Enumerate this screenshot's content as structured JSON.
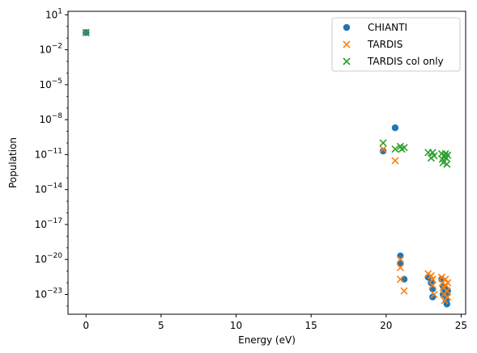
{
  "chart_data": {
    "type": "scatter",
    "title": "",
    "xlabel": "Energy (eV)",
    "ylabel": "Population",
    "xlim": [
      -1.2,
      25.3
    ],
    "ylim_log10": [
      -24.7,
      1.3
    ],
    "yscale": "log",
    "x_ticks": [
      0,
      5,
      10,
      15,
      20,
      25
    ],
    "x_tick_labels": [
      "0",
      "5",
      "10",
      "15",
      "20",
      "25"
    ],
    "y_ticks_log10": [
      1,
      -2,
      -5,
      -8,
      -11,
      -14,
      -17,
      -20,
      -23
    ],
    "grid": false,
    "legend_position": "upper right",
    "series": [
      {
        "name": "CHIANTI",
        "marker": "circle",
        "color": "#1f77b4",
        "points": [
          {
            "x": 0.0,
            "y": 0.3
          },
          {
            "x": 20.6,
            "y": 2e-09
          },
          {
            "x": 19.8,
            "y": 2e-11
          },
          {
            "x": 20.95,
            "y": 2e-20
          },
          {
            "x": 20.95,
            "y": 5e-21
          },
          {
            "x": 21.2,
            "y": 2e-22
          },
          {
            "x": 22.8,
            "y": 3e-22
          },
          {
            "x": 23.0,
            "y": 1e-22
          },
          {
            "x": 23.1,
            "y": 3e-23
          },
          {
            "x": 23.1,
            "y": 6e-24
          },
          {
            "x": 23.7,
            "y": 2e-22
          },
          {
            "x": 23.8,
            "y": 5e-23
          },
          {
            "x": 23.8,
            "y": 1e-23
          },
          {
            "x": 23.9,
            "y": 3e-23
          },
          {
            "x": 24.0,
            "y": 1e-23
          },
          {
            "x": 24.0,
            "y": 3e-24
          },
          {
            "x": 24.05,
            "y": 1.5e-24
          },
          {
            "x": 24.1,
            "y": 2e-23
          }
        ]
      },
      {
        "name": "TARDIS",
        "marker": "x",
        "color": "#ff7f0e",
        "points": [
          {
            "x": 0.0,
            "y": 0.3
          },
          {
            "x": 19.8,
            "y": 3e-11
          },
          {
            "x": 20.6,
            "y": 3e-12
          },
          {
            "x": 20.95,
            "y": 1e-20
          },
          {
            "x": 20.95,
            "y": 2e-21
          },
          {
            "x": 20.95,
            "y": 2e-22
          },
          {
            "x": 21.2,
            "y": 2e-23
          },
          {
            "x": 22.8,
            "y": 6e-22
          },
          {
            "x": 23.0,
            "y": 4e-22
          },
          {
            "x": 23.1,
            "y": 2e-22
          },
          {
            "x": 23.1,
            "y": 6e-23
          },
          {
            "x": 23.2,
            "y": 1e-23
          },
          {
            "x": 23.7,
            "y": 3e-22
          },
          {
            "x": 23.75,
            "y": 1e-22
          },
          {
            "x": 23.8,
            "y": 4e-23
          },
          {
            "x": 23.85,
            "y": 1e-23
          },
          {
            "x": 23.9,
            "y": 3e-24
          },
          {
            "x": 23.95,
            "y": 2e-22
          },
          {
            "x": 24.0,
            "y": 6e-23
          },
          {
            "x": 24.05,
            "y": 2e-23
          },
          {
            "x": 24.1,
            "y": 6e-24
          },
          {
            "x": 24.1,
            "y": 1e-22
          }
        ]
      },
      {
        "name": "TARDIS col only",
        "marker": "x",
        "color": "#2ca02c",
        "points": [
          {
            "x": 0.0,
            "y": 0.3
          },
          {
            "x": 19.8,
            "y": 1e-10
          },
          {
            "x": 20.6,
            "y": 3e-11
          },
          {
            "x": 20.95,
            "y": 5e-11
          },
          {
            "x": 21.05,
            "y": 3e-11
          },
          {
            "x": 21.2,
            "y": 4e-11
          },
          {
            "x": 22.8,
            "y": 1.5e-11
          },
          {
            "x": 23.0,
            "y": 5e-12
          },
          {
            "x": 23.1,
            "y": 1.5e-11
          },
          {
            "x": 23.2,
            "y": 8e-12
          },
          {
            "x": 23.7,
            "y": 1.2e-11
          },
          {
            "x": 23.75,
            "y": 4e-12
          },
          {
            "x": 23.8,
            "y": 2e-12
          },
          {
            "x": 23.9,
            "y": 8e-12
          },
          {
            "x": 23.95,
            "y": 1.2e-11
          },
          {
            "x": 24.0,
            "y": 5e-12
          },
          {
            "x": 24.05,
            "y": 1.5e-12
          },
          {
            "x": 24.1,
            "y": 9e-12
          }
        ]
      }
    ]
  }
}
